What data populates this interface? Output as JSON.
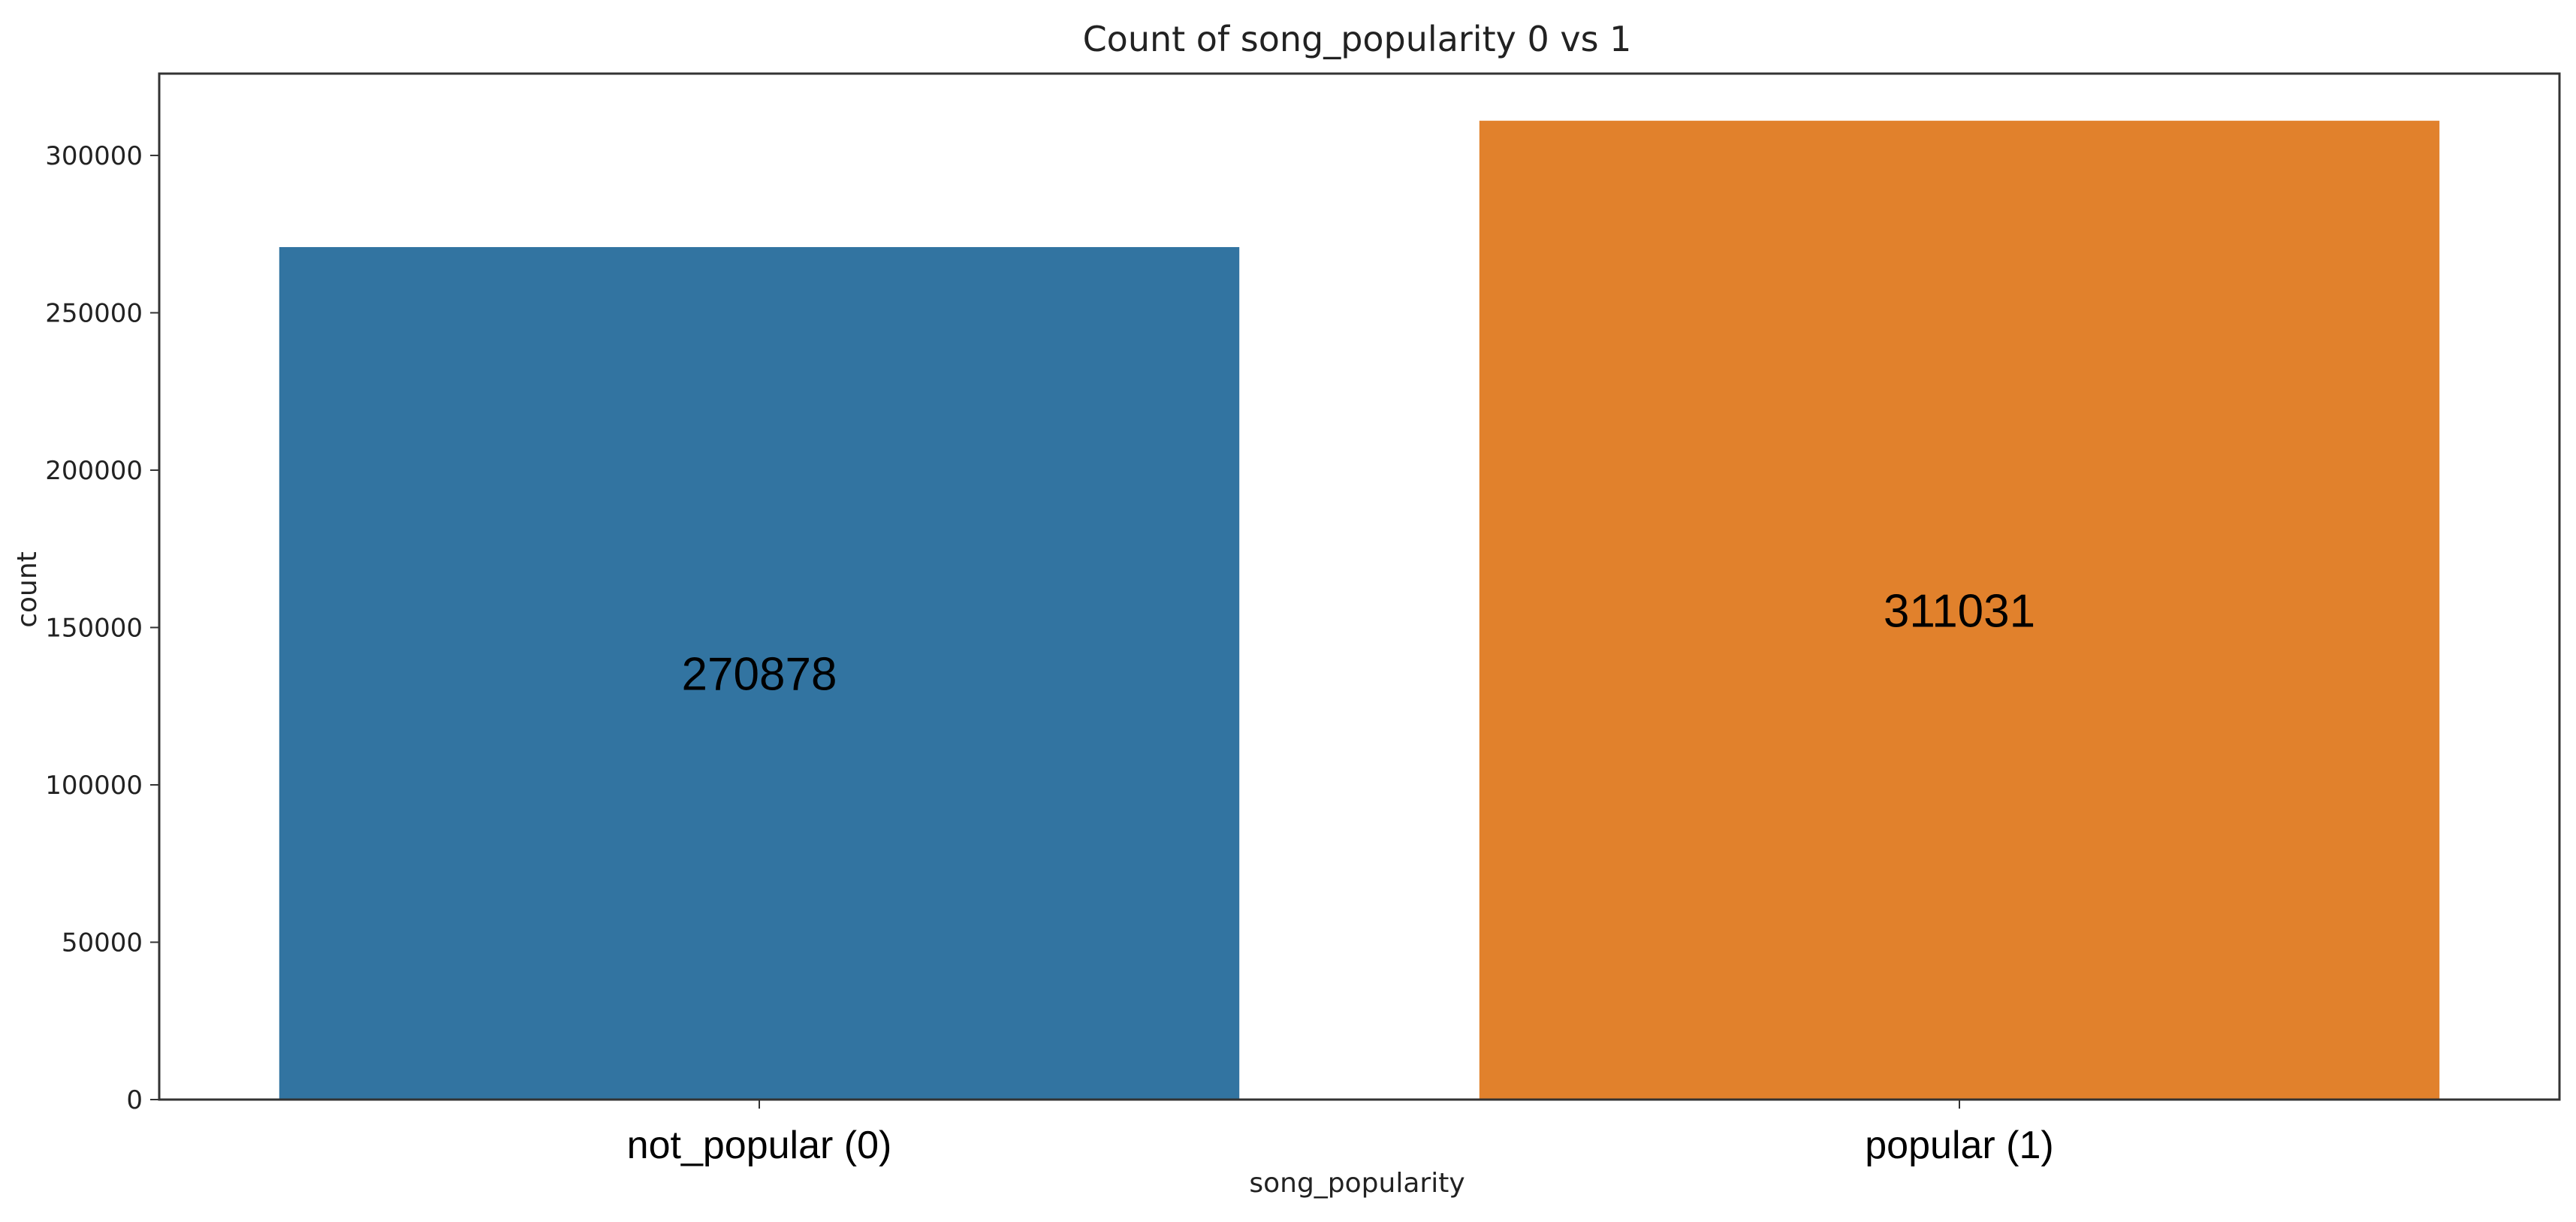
{
  "chart_data": {
    "type": "bar",
    "title": "Count of song_popularity 0 vs 1",
    "xlabel": "song_popularity",
    "ylabel": "count",
    "categories": [
      "not_popular (0)",
      "popular (1)"
    ],
    "values": [
      270878,
      311031
    ],
    "data_labels": [
      "270878",
      "311031"
    ],
    "ylim": [
      0,
      326000
    ],
    "yticks": [
      0,
      50000,
      100000,
      150000,
      200000,
      250000,
      300000
    ],
    "ytick_labels": [
      "0",
      "50000",
      "100000",
      "150000",
      "200000",
      "250000",
      "300000"
    ],
    "colors": [
      "#3274a1",
      "#e1812c"
    ],
    "grid": false,
    "legend": "none"
  }
}
